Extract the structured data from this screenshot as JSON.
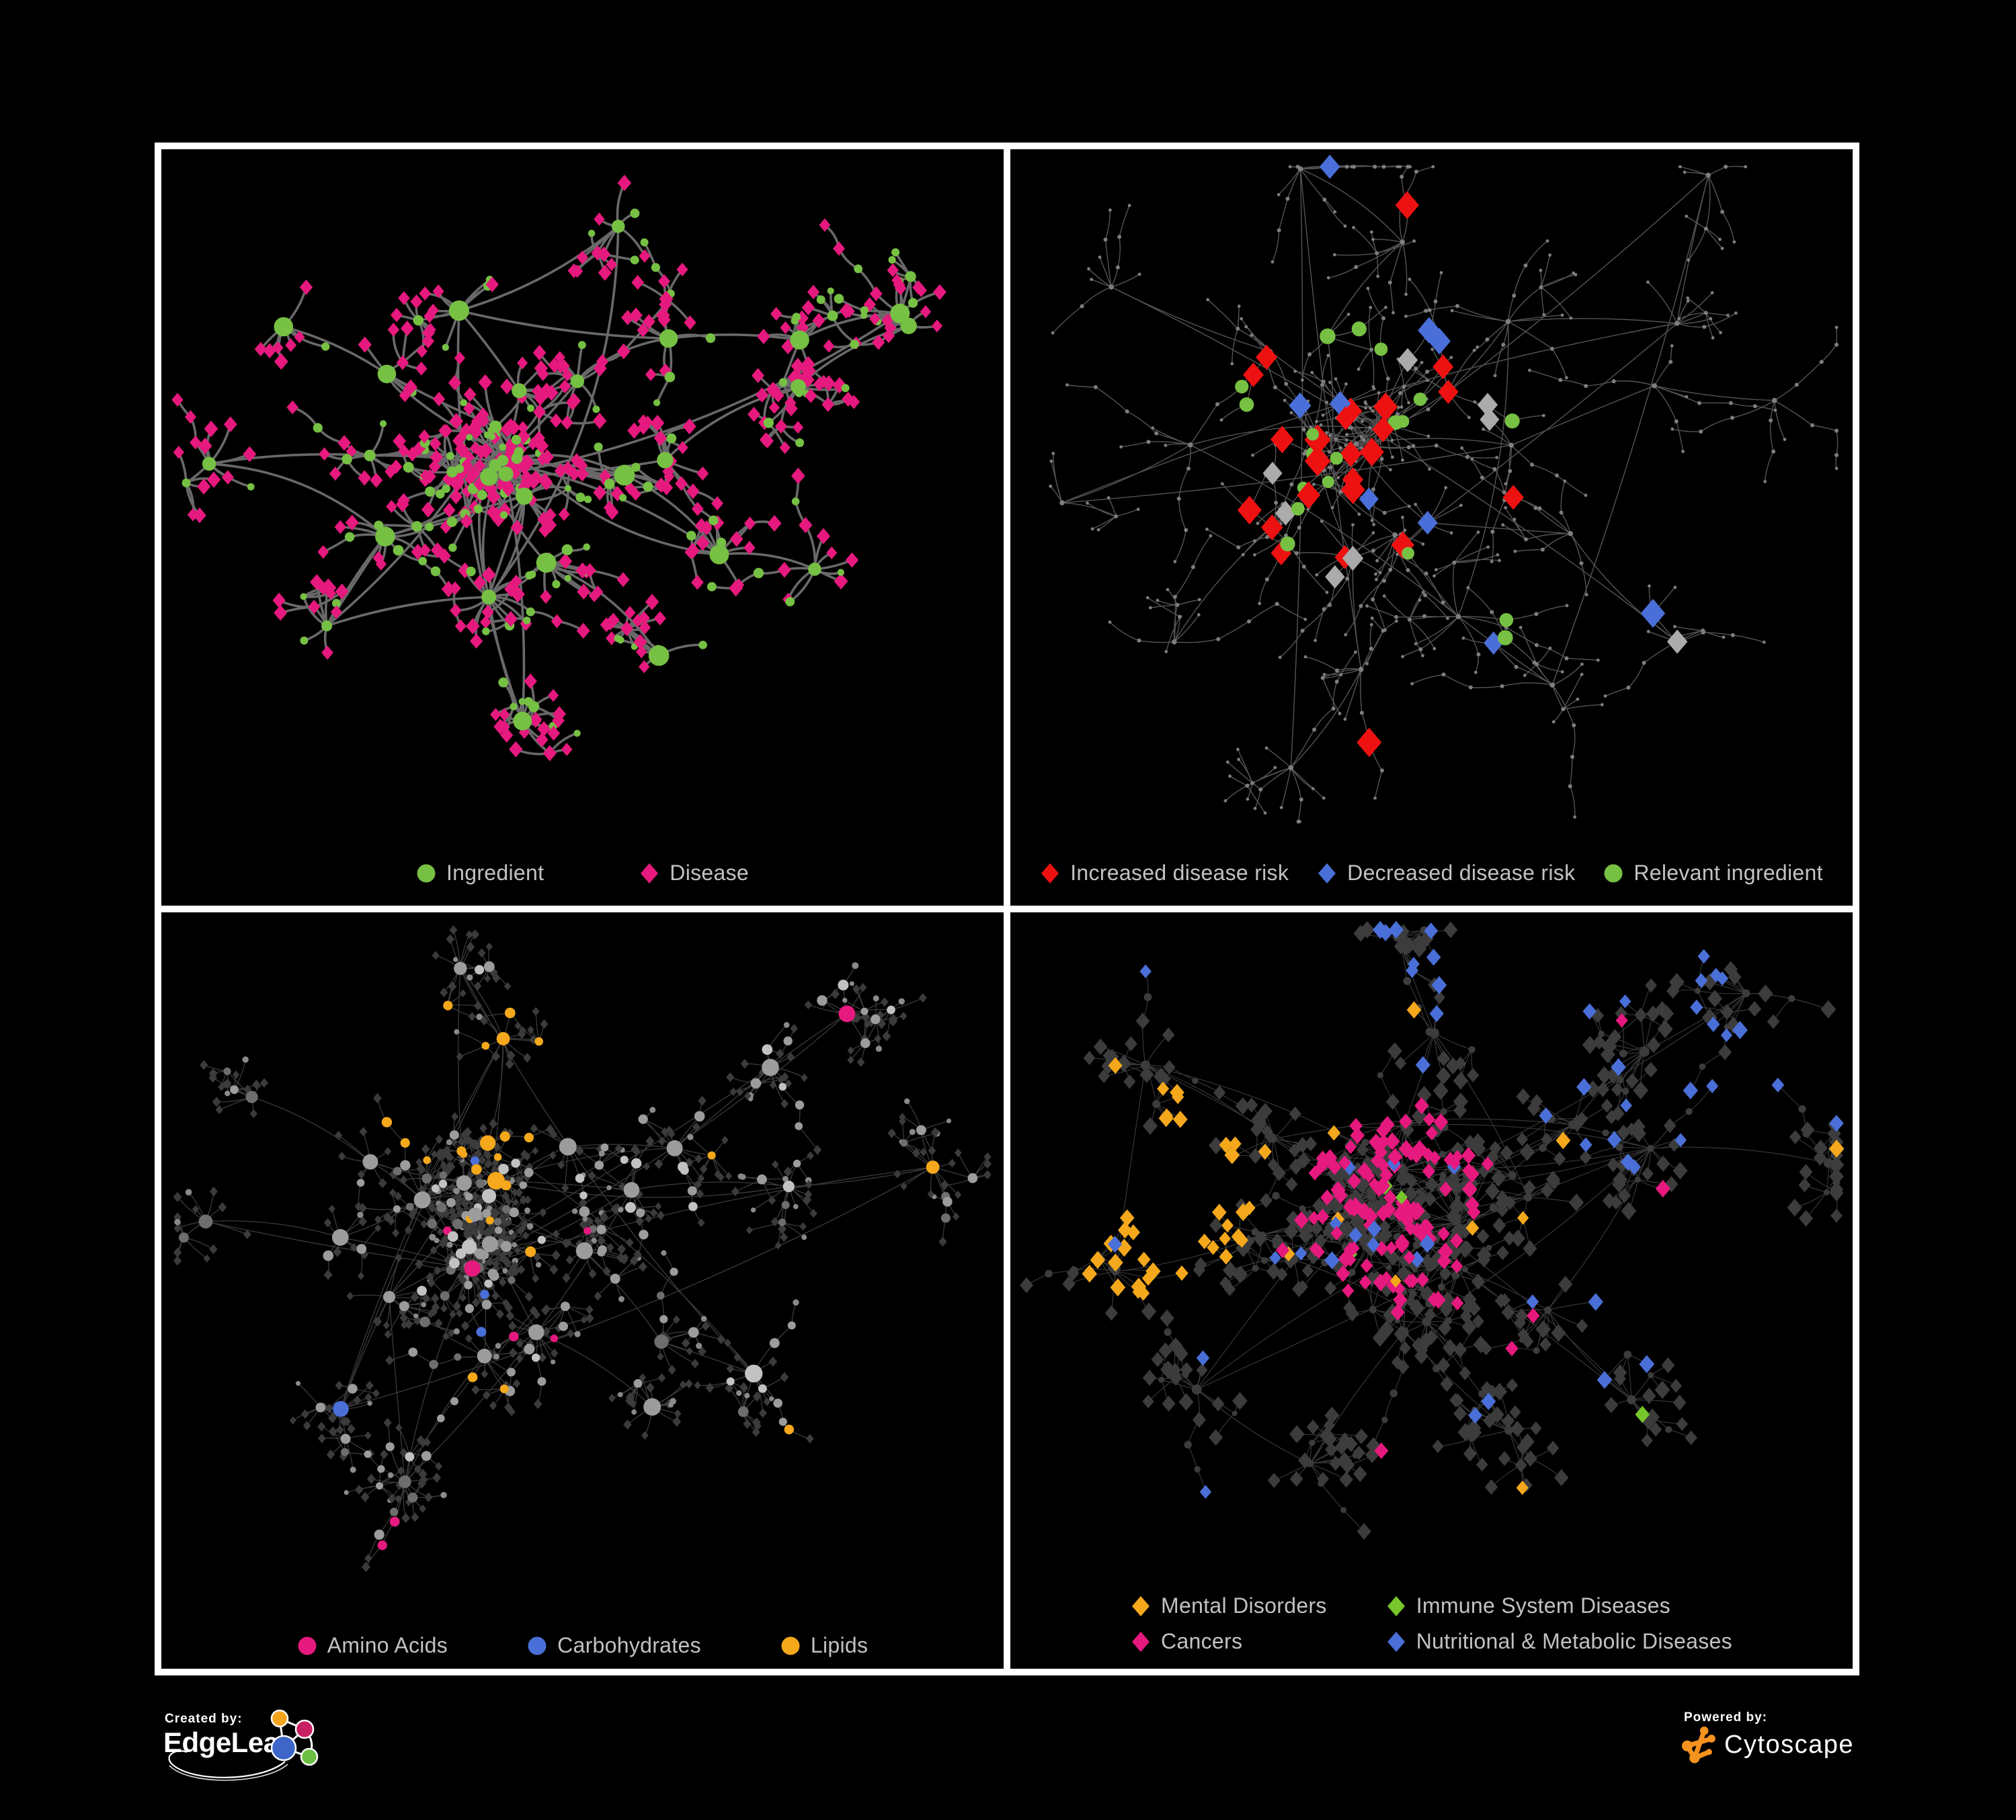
{
  "branding": {
    "created_by": "Created by:",
    "created_name": "EdgeLeap",
    "powered_by": "Powered by:",
    "powered_name": "Cytoscape",
    "cytoscape_orange": "#F6921E",
    "edgeleap_logo_colors": {
      "amber": "#F2A41C",
      "pink": "#C72163",
      "blue": "#3E66C9",
      "green": "#6DBE45"
    }
  },
  "panels": [
    {
      "id": "ingredient-disease",
      "legend": [
        {
          "label": "Ingredient",
          "shape": "circle",
          "color": "#76C043"
        },
        {
          "label": "Disease",
          "shape": "diamond",
          "color": "#E6197E"
        }
      ]
    },
    {
      "id": "disease-risk",
      "legend": [
        {
          "label": "Increased disease risk",
          "shape": "diamond",
          "color": "#EE1111"
        },
        {
          "label": "Decreased disease risk",
          "shape": "diamond",
          "color": "#4A6FD8"
        },
        {
          "label": "Relevant ingredient",
          "shape": "circle",
          "color": "#76C043"
        }
      ]
    },
    {
      "id": "compound-classes",
      "legend": [
        {
          "label": "Amino Acids",
          "shape": "circle",
          "color": "#E6197E"
        },
        {
          "label": "Carbohydrates",
          "shape": "circle",
          "color": "#4A6FD8"
        },
        {
          "label": "Lipids",
          "shape": "circle",
          "color": "#F5A81B"
        }
      ]
    },
    {
      "id": "disease-categories",
      "legend": [
        {
          "label": "Mental Disorders",
          "shape": "diamond",
          "color": "#F5A81B"
        },
        {
          "label": "Immune System Diseases",
          "shape": "diamond",
          "color": "#76C62C"
        },
        {
          "label": "Cancers",
          "shape": "diamond",
          "color": "#E6197E"
        },
        {
          "label": "Nutritional & Metabolic Diseases",
          "shape": "diamond",
          "color": "#4A6FD8"
        }
      ]
    }
  ],
  "networks": [
    {
      "panel": "ingredient-disease",
      "style": "bicolor",
      "edge": {
        "color": "#6F6F6F",
        "width": 3.6,
        "opacity": 0.95,
        "curve": 0.42
      },
      "palette": {
        "ingredient": "#76C043",
        "disease": "#E6197E"
      },
      "gen": {
        "seed": 7,
        "core": [
          0.4,
          0.45
        ],
        "coreHubs": 7,
        "coreR": 0.085,
        "coreBurst": [
          9,
          8
        ],
        "leafLen": 0.042,
        "ar": 0.88,
        "sub": 0.2,
        "subSize": 6,
        "chain": 0.12,
        "maxDepth": 2,
        "cross": 20,
        "arms": [
          {
            "a": -2.45,
            "d": 0.32,
            "n": 2,
            "b": [
              5,
              5
            ],
            "sp": 0.5
          },
          {
            "a": -1.45,
            "d": 0.34,
            "n": 3,
            "b": [
              5,
              6
            ],
            "sp": 0.55
          },
          {
            "a": -0.52,
            "d": 0.52,
            "n": 4,
            "b": [
              6,
              7
            ],
            "sp": 0.42
          },
          {
            "a": -0.15,
            "d": 0.53,
            "n": 3,
            "b": [
              6,
              7
            ],
            "sp": 0.38
          },
          {
            "a": 0.55,
            "d": 0.4,
            "n": 3,
            "b": [
              6,
              7
            ],
            "sp": 0.5
          },
          {
            "a": 1.05,
            "d": 0.34,
            "n": 2,
            "b": [
              7,
              7
            ],
            "sp": 0.4
          },
          {
            "a": 1.65,
            "d": 0.36,
            "n": 2,
            "b": [
              9,
              7
            ],
            "sp": 0.45
          },
          {
            "a": 2.35,
            "d": 0.3,
            "n": 2,
            "b": [
              6,
              5
            ],
            "sp": 0.5
          },
          {
            "a": 2.95,
            "d": 0.34,
            "n": 2,
            "b": [
              5,
              6
            ],
            "sp": 0.4
          }
        ]
      }
    },
    {
      "panel": "disease-risk",
      "style": "risk",
      "edge": {
        "color": "#8C8C8C",
        "width": 1.4,
        "opacity": 0.6,
        "curve": 0.22
      },
      "palette": {
        "increased": "#EE1111",
        "decreased": "#4A6FD8",
        "relevant": "#76C043",
        "neutral": "#ABABAB",
        "base": "#7E7E7E"
      },
      "gen": {
        "seed": 19,
        "core": [
          0.41,
          0.42
        ],
        "coreHubs": 6,
        "coreR": 0.08,
        "coreBurst": [
          6,
          6
        ],
        "leafLen": 0.05,
        "ar": 0.95,
        "sub": 0.16,
        "subSize": 5,
        "chain": 0.45,
        "maxDepth": 2,
        "cross": 10,
        "arms": [
          {
            "a": -2.45,
            "d": 0.33,
            "n": 2,
            "b": [
              4,
              4
            ],
            "sp": 0.5
          },
          {
            "a": -1.5,
            "d": 0.36,
            "n": 3,
            "b": [
              4,
              5
            ],
            "sp": 0.55
          },
          {
            "a": -0.55,
            "d": 0.52,
            "n": 4,
            "b": [
              4,
              5
            ],
            "sp": 0.45
          },
          {
            "a": -0.1,
            "d": 0.52,
            "n": 3,
            "b": [
              4,
              5
            ],
            "sp": 0.4
          },
          {
            "a": 0.6,
            "d": 0.44,
            "n": 3,
            "b": [
              5,
              5
            ],
            "sp": 0.5
          },
          {
            "a": 1.1,
            "d": 0.38,
            "n": 3,
            "b": [
              5,
              5
            ],
            "sp": 0.45
          },
          {
            "a": 1.7,
            "d": 0.4,
            "n": 3,
            "b": [
              6,
              5
            ],
            "sp": 0.45
          },
          {
            "a": 2.4,
            "d": 0.32,
            "n": 2,
            "b": [
              5,
              4
            ],
            "sp": 0.5
          },
          {
            "a": 2.95,
            "d": 0.36,
            "n": 2,
            "b": [
              4,
              5
            ],
            "sp": 0.4
          }
        ]
      }
    },
    {
      "panel": "compound-classes",
      "style": "classes",
      "edge": {
        "color": "#C0C0C0",
        "width": 1.3,
        "opacity": 0.3,
        "curve": 0.2
      },
      "palette": {
        "amino": "#E6197E",
        "carbo": "#4A6FD8",
        "lipids": "#F5A81B",
        "gray": "#9C9C9C",
        "gray2": "#6E6E6E",
        "light": "#C2C2C2",
        "leaf": "#3B3B3B",
        "leafc": "#8A8A8A"
      },
      "gen": {
        "seed": 33,
        "core": [
          0.38,
          0.44
        ],
        "coreHubs": 9,
        "coreR": 0.1,
        "coreBurst": [
          11,
          9
        ],
        "leafLen": 0.038,
        "ar": 0.86,
        "sub": 0.22,
        "subSize": 7,
        "chain": 0.16,
        "maxDepth": 2,
        "cross": 26,
        "arms": [
          {
            "a": -2.45,
            "d": 0.32,
            "n": 2,
            "b": [
              5,
              5
            ],
            "sp": 0.5
          },
          {
            "a": -1.45,
            "d": 0.34,
            "n": 3,
            "b": [
              5,
              6
            ],
            "sp": 0.55
          },
          {
            "a": -0.52,
            "d": 0.52,
            "n": 4,
            "b": [
              6,
              7
            ],
            "sp": 0.42
          },
          {
            "a": -0.15,
            "d": 0.53,
            "n": 3,
            "b": [
              6,
              7
            ],
            "sp": 0.38
          },
          {
            "a": 0.55,
            "d": 0.4,
            "n": 3,
            "b": [
              6,
              7
            ],
            "sp": 0.5
          },
          {
            "a": 1.05,
            "d": 0.34,
            "n": 2,
            "b": [
              7,
              7
            ],
            "sp": 0.4
          },
          {
            "a": 1.65,
            "d": 0.36,
            "n": 2,
            "b": [
              9,
              7
            ],
            "sp": 0.45
          },
          {
            "a": 2.35,
            "d": 0.3,
            "n": 2,
            "b": [
              6,
              5
            ],
            "sp": 0.5
          },
          {
            "a": 2.95,
            "d": 0.34,
            "n": 2,
            "b": [
              5,
              6
            ],
            "sp": 0.4
          }
        ]
      }
    },
    {
      "panel": "disease-categories",
      "style": "categories",
      "edge": {
        "color": "#C0C0C0",
        "width": 1.1,
        "opacity": 0.3,
        "curve": 0.18
      },
      "palette": {
        "mental": "#F5A81B",
        "immune": "#76C62C",
        "cancers": "#E6197E",
        "nutri": "#4A6FD8",
        "dark": "#3C3C3C"
      },
      "gen": {
        "seed": 51,
        "core": [
          0.44,
          0.42
        ],
        "coreHubs": 9,
        "coreR": 0.11,
        "coreBurst": [
          11,
          9
        ],
        "leafLen": 0.042,
        "ar": 0.9,
        "sub": 0.22,
        "subSize": 6,
        "chain": 0.15,
        "maxDepth": 2,
        "cross": 30,
        "arms": [
          {
            "a": -2.45,
            "d": 0.32,
            "n": 2,
            "b": [
              7,
              7
            ],
            "sp": 0.5
          },
          {
            "a": -1.45,
            "d": 0.34,
            "n": 3,
            "b": [
              7,
              7
            ],
            "sp": 0.55
          },
          {
            "a": -0.52,
            "d": 0.52,
            "n": 4,
            "b": [
              7,
              8
            ],
            "sp": 0.42
          },
          {
            "a": -0.15,
            "d": 0.53,
            "n": 3,
            "b": [
              7,
              8
            ],
            "sp": 0.38
          },
          {
            "a": 0.55,
            "d": 0.4,
            "n": 3,
            "b": [
              7,
              8
            ],
            "sp": 0.5
          },
          {
            "a": 1.05,
            "d": 0.34,
            "n": 2,
            "b": [
              8,
              7
            ],
            "sp": 0.4
          },
          {
            "a": 1.65,
            "d": 0.36,
            "n": 2,
            "b": [
              9,
              7
            ],
            "sp": 0.45
          },
          {
            "a": 2.35,
            "d": 0.3,
            "n": 2,
            "b": [
              7,
              6
            ],
            "sp": 0.5
          },
          {
            "a": 2.95,
            "d": 0.34,
            "n": 2,
            "b": [
              6,
              6
            ],
            "sp": 0.4
          }
        ]
      }
    }
  ]
}
